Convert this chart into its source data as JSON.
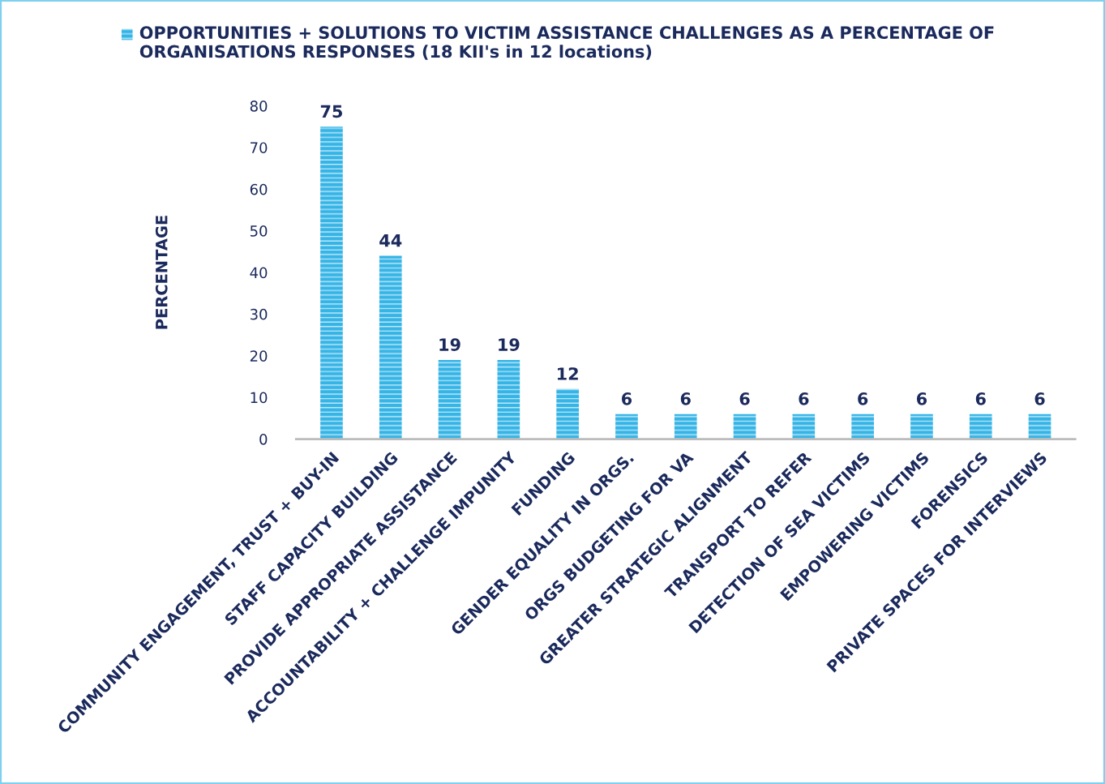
{
  "chart_data": {
    "type": "bar",
    "categories": [
      "COMMUNITY ENGAGEMENT, TRUST + BUY-IN",
      "STAFF CAPACITY BUILDING",
      "PROVIDE APPROPRIATE ASSISTANCE",
      "ACCOUNTABILITY + CHALLENGE IMPUNITY",
      "FUNDING",
      "GENDER EQUALITY IN ORGS.",
      "ORGS BUDGETING FOR VA",
      "GREATER STRATEGIC ALIGNMENT",
      "TRANSPORT TO REFER",
      "DETECTION OF SEA VICTIMS",
      "EMPOWERING VICTIMS",
      "FORENSICS",
      "PRIVATE SPACES FOR INTERVIEWS"
    ],
    "series": [
      {
        "name": "OPPORTUNITIES + SOLUTIONS TO VICTIM ASSISTANCE CHALLENGES AS A PERCENTAGE OF ORGANISATIONS RESPONSES (18 KII's in 12 locations)",
        "color": "#35b4e6",
        "values": [
          75,
          44,
          19,
          19,
          12,
          6,
          6,
          6,
          6,
          6,
          6,
          6,
          6
        ]
      }
    ],
    "ylabel": "PERCENTAGE",
    "ylim": [
      0,
      80
    ],
    "yticks": [
      0,
      10,
      20,
      30,
      40,
      50,
      60,
      70,
      80
    ],
    "data_labels": true,
    "grid": false,
    "legend": "top"
  }
}
